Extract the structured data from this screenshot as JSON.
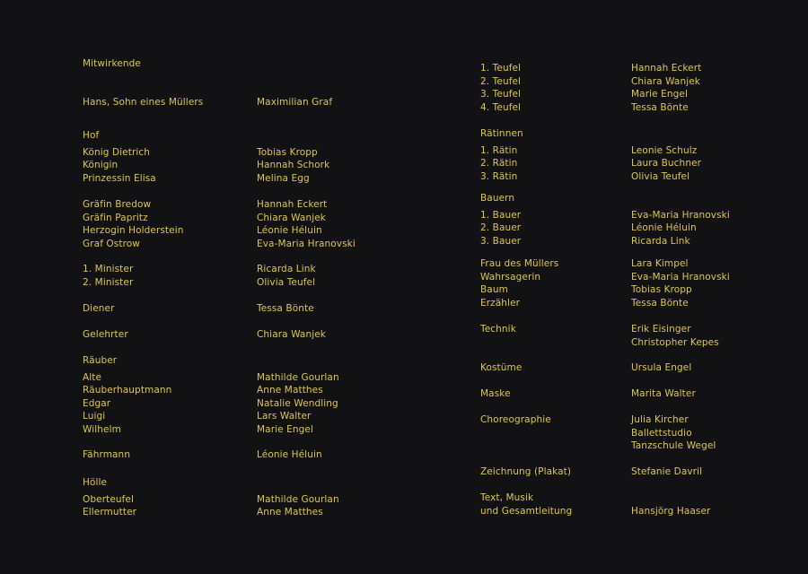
{
  "colors": {
    "background": "#121215",
    "text": "#dcc74e"
  },
  "left_column": [
    {
      "heading": "Mitwirkende",
      "rows": []
    },
    {
      "rows": [
        [
          "Hans, Sohn eines Müllers",
          "Maximilian Graf"
        ]
      ]
    },
    {
      "heading": "Hof",
      "rows": [
        [
          "König Dietrich",
          "Tobias Kropp"
        ],
        [
          "Königin",
          "Hannah Schork"
        ],
        [
          "Prinzessin Elisa",
          "Melina Egg"
        ]
      ]
    },
    {
      "rows": [
        [
          "Gräfin Bredow",
          "Hannah Eckert"
        ],
        [
          "Gräfin Papritz",
          "Chiara Wanjek"
        ],
        [
          "Herzogin Holderstein",
          "Léonie Héluin"
        ],
        [
          "Graf Ostrow",
          "Eva-Maria Hranovski"
        ]
      ]
    },
    {
      "rows": [
        [
          "1. Minister",
          "Ricarda Link"
        ],
        [
          "2. Minister",
          "Olivia Teufel"
        ]
      ]
    },
    {
      "rows": [
        [
          "Diener",
          "Tessa Bönte"
        ]
      ]
    },
    {
      "rows": [
        [
          "Gelehrter",
          "Chiara Wanjek"
        ]
      ]
    },
    {
      "heading": "Räuber",
      "rows": [
        [
          "Alte",
          "Mathilde Gourlan"
        ],
        [
          "Räuberhauptmann",
          "Anne Matthes"
        ],
        [
          "Edgar",
          "Natalie Wendling"
        ],
        [
          "Luigi",
          "Lars Walter"
        ],
        [
          "Wilhelm",
          "Marie Engel"
        ]
      ]
    },
    {
      "rows": [
        [
          "Fährmann",
          "Léonie Héluin"
        ]
      ]
    },
    {
      "heading": "Hölle",
      "rows": [
        [
          "Oberteufel",
          "Mathilde Gourlan"
        ],
        [
          "Ellermutter",
          "Anne Matthes"
        ]
      ]
    }
  ],
  "right_column": [
    {
      "rows": [
        [
          "1. Teufel",
          "Hannah Eckert"
        ],
        [
          "2. Teufel",
          "Chiara Wanjek"
        ],
        [
          "3. Teufel",
          "Marie Engel"
        ],
        [
          "4. Teufel",
          "Tessa Bönte"
        ]
      ]
    },
    {
      "heading": "Rätinnen",
      "rows": [
        [
          "1. Rätin",
          "Leonie Schulz"
        ],
        [
          "2. Rätin",
          "Laura Buchner"
        ],
        [
          "3. Rätin",
          "Olivia Teufel"
        ]
      ]
    },
    {
      "heading": "Bauern",
      "rows": [
        [
          "1. Bauer",
          "Eva-Maria Hranovski"
        ],
        [
          "2. Bauer",
          "Léonie Héluin"
        ],
        [
          "3. Bauer",
          "Ricarda Link"
        ]
      ]
    },
    {
      "rows": [
        [
          "Frau des Müllers",
          "Lara Kimpel"
        ],
        [
          "Wahrsagerin",
          "Eva-Maria Hranovski"
        ],
        [
          "Baum",
          "Tobias Kropp"
        ],
        [
          "Erzähler",
          "Tessa Bönte"
        ]
      ]
    },
    {
      "rows": [
        [
          "Technik",
          "Erik Eisinger"
        ],
        [
          "",
          "Christopher Kepes"
        ]
      ]
    },
    {
      "rows": [
        [
          "Kostüme",
          "Ursula Engel"
        ]
      ]
    },
    {
      "rows": [
        [
          "Maske",
          "Marita Walter"
        ]
      ]
    },
    {
      "rows": [
        [
          "Choreographie",
          "Julia Kircher"
        ],
        [
          "",
          "Ballettstudio"
        ],
        [
          "",
          "Tanzschule Wegel"
        ]
      ]
    },
    {
      "rows": [
        [
          "Zeichnung (Plakat)",
          "Stefanie Davril"
        ]
      ]
    },
    {
      "rows": [
        [
          "Text, Musik",
          ""
        ],
        [
          "und Gesamtleitung",
          "Hansjörg Haaser"
        ]
      ]
    }
  ]
}
